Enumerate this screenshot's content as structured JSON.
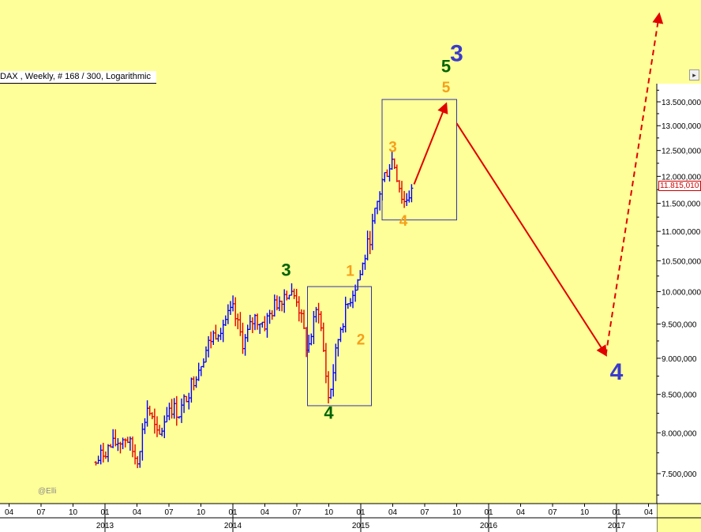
{
  "chart_title": "DAX , Weekly, # 168 / 300, Logarithmic",
  "credit": "@Elli",
  "last_price_label": "11.815,010",
  "colors": {
    "background": "#ffff99",
    "up_bar": "#0000ff",
    "down_bar": "#e00000",
    "projection": "#e00000",
    "primary_wave": "#3a3acc",
    "intermediate_wave": "#006400",
    "minor_wave": "#f5a01a"
  },
  "chart_data": {
    "type": "ohlc",
    "scale": "logarithmic",
    "ylim": [
      7050,
      13800
    ],
    "y_ticks": [
      7500,
      8000,
      8500,
      9000,
      9500,
      10000,
      10500,
      11000,
      11500,
      12000,
      12500,
      13000,
      13500
    ],
    "y_tick_labels": [
      "7.500,000",
      "8.000,000",
      "8.500,000",
      "9.000,000",
      "9.500,000",
      "10.000,000",
      "10.500,000",
      "11.000,000",
      "11.500,000",
      "12.000,000",
      "12.500,000",
      "13.000,000",
      "13.500,000"
    ],
    "x_month_ticks": [
      "04",
      "07",
      "10",
      "01",
      "04",
      "07",
      "10",
      "01",
      "04",
      "07",
      "10",
      "01",
      "04",
      "07",
      "10",
      "01",
      "04",
      "07",
      "10",
      "01",
      "04"
    ],
    "x_year_labels": [
      "2013",
      "2014",
      "2015",
      "2016",
      "2017"
    ],
    "price_path": [
      [
        "2012-12",
        7600
      ],
      [
        "2013-01",
        7780
      ],
      [
        "2013-03",
        7950
      ],
      [
        "2013-04",
        7650
      ],
      [
        "2013-05",
        8350
      ],
      [
        "2013-06",
        7900
      ],
      [
        "2013-07",
        8350
      ],
      [
        "2013-08",
        8250
      ],
      [
        "2013-09",
        8600
      ],
      [
        "2013-11",
        9300
      ],
      [
        "2013-12",
        9500
      ],
      [
        "2014-01",
        9700
      ],
      [
        "2014-02",
        9200
      ],
      [
        "2014-03",
        9600
      ],
      [
        "2014-04",
        9500
      ],
      [
        "2014-05",
        9800
      ],
      [
        "2014-06",
        10000
      ],
      [
        "2014-07",
        9900
      ],
      [
        "2014-08",
        9100
      ],
      [
        "2014-09",
        9800
      ],
      [
        "2014-10",
        8400
      ],
      [
        "2014-11",
        9400
      ],
      [
        "2014-12",
        9900
      ],
      [
        "2015-01",
        10300
      ],
      [
        "2015-02",
        11000
      ],
      [
        "2015-03",
        11900
      ],
      [
        "2015-04",
        12350
      ],
      [
        "2015-05",
        11500
      ],
      [
        "2015-06",
        11815
      ]
    ],
    "boxes": [
      {
        "x0": "2014-08",
        "x1": "2015-02",
        "y_low": 8350,
        "y_high": 10080
      },
      {
        "x0": "2015-03",
        "x1": "2015-10",
        "y_low": 11200,
        "y_high": 13550
      }
    ],
    "projection_path": [
      {
        "x": "2015-06",
        "y": 11850,
        "style": "solid"
      },
      {
        "x": "2015-09",
        "y": 13450,
        "style": "solid"
      },
      {
        "x": "2015-10",
        "y": 13050,
        "style": "gap"
      },
      {
        "x": "2016-12",
        "y": 9050,
        "style": "solid"
      },
      {
        "x": "2017-05",
        "y": 15500,
        "style": "dashed"
      }
    ],
    "wave_labels": [
      {
        "text": "3",
        "degree": "intermediate",
        "x": "2014-06",
        "y": 10250
      },
      {
        "text": "4",
        "degree": "intermediate",
        "x": "2014-10",
        "y": 8180
      },
      {
        "text": "1",
        "degree": "minor",
        "x": "2014-12",
        "y": 10250
      },
      {
        "text": "2",
        "degree": "minor",
        "x": "2015-01",
        "y": 9200
      },
      {
        "text": "3",
        "degree": "minor",
        "x": "2015-04",
        "y": 12470
      },
      {
        "text": "4",
        "degree": "minor",
        "x": "2015-05",
        "y": 11100
      },
      {
        "text": "5",
        "degree": "minor",
        "x": "2015-09",
        "y": 13700
      },
      {
        "text": "5",
        "degree": "intermediate",
        "x": "2015-09",
        "y": 14150
      },
      {
        "text": "3",
        "degree": "primary",
        "x": "2015-10",
        "y": 14400
      },
      {
        "text": "4",
        "degree": "primary",
        "x": "2017-01",
        "y": 8700
      }
    ]
  }
}
